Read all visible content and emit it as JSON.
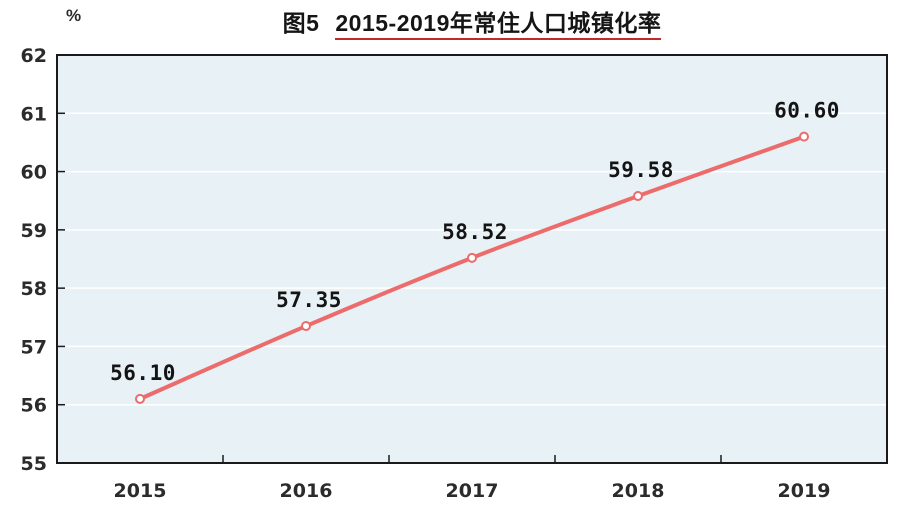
{
  "title": {
    "prefix": "图5",
    "main": "2015-2019年常住人口城镇化率"
  },
  "chart_data": {
    "type": "line",
    "title": "图5 2015-2019年常住人口城镇化率",
    "categories": [
      "2015",
      "2016",
      "2017",
      "2018",
      "2019"
    ],
    "values": [
      56.1,
      57.35,
      58.52,
      59.58,
      60.6
    ],
    "data_labels": [
      "56.10",
      "57.35",
      "58.52",
      "59.58",
      "60.60"
    ],
    "series_name": "常住人口城镇化率",
    "xlabel": "",
    "ylabel": "%",
    "ylim": [
      55,
      62
    ],
    "ytick_step": 1,
    "grid": true,
    "legend": "none",
    "marker": "open-circle",
    "colors": {
      "line": "#ec6b6b",
      "marker_fill": "#ffffff",
      "plot_bg": "#e8f1f6",
      "grid": "#ffffff",
      "axis": "#1a1a1a",
      "tick_label": "#2b2b2b",
      "data_label": "#141414",
      "title_text": "#151515",
      "title_underline": "#c22a2a"
    }
  }
}
